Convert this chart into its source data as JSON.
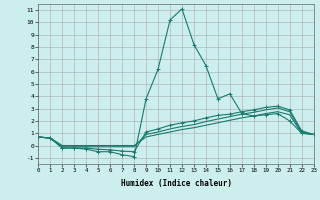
{
  "xlabel": "Humidex (Indice chaleur)",
  "bg_color": "#cceeed",
  "grid_color": "#aaaaaa",
  "line_color": "#1a7a6e",
  "xlim": [
    0,
    23
  ],
  "ylim": [
    -1.5,
    11.5
  ],
  "xticks": [
    0,
    1,
    2,
    3,
    4,
    5,
    6,
    7,
    8,
    9,
    10,
    11,
    12,
    13,
    14,
    15,
    16,
    17,
    18,
    19,
    20,
    21,
    22,
    23
  ],
  "yticks": [
    -1,
    0,
    1,
    2,
    3,
    4,
    5,
    6,
    7,
    8,
    9,
    10,
    11
  ],
  "series_with_markers": [
    [
      0.7,
      0.6,
      -0.2,
      -0.2,
      -0.3,
      -0.5,
      -0.5,
      -0.75,
      -0.9,
      3.8,
      6.2,
      10.2,
      11.1,
      8.2,
      6.5,
      3.8,
      4.2,
      2.6,
      2.4,
      2.5,
      2.6,
      2.0,
      1.0,
      0.9
    ],
    [
      0.7,
      0.6,
      -0.2,
      -0.2,
      -0.2,
      -0.3,
      -0.35,
      -0.45,
      -0.5,
      1.1,
      1.35,
      1.65,
      1.85,
      2.0,
      2.25,
      2.45,
      2.55,
      2.75,
      2.9,
      3.1,
      3.2,
      2.9,
      1.2,
      0.9
    ]
  ],
  "series_no_markers": [
    [
      0.7,
      0.6,
      -0.1,
      -0.1,
      -0.1,
      -0.1,
      -0.1,
      -0.1,
      -0.1,
      0.9,
      1.1,
      1.35,
      1.55,
      1.7,
      1.95,
      2.15,
      2.35,
      2.55,
      2.7,
      2.9,
      3.05,
      2.75,
      1.1,
      0.9
    ],
    [
      0.7,
      0.6,
      0.0,
      0.0,
      0.0,
      0.0,
      0.0,
      0.0,
      0.0,
      0.7,
      0.9,
      1.1,
      1.3,
      1.45,
      1.65,
      1.85,
      2.05,
      2.25,
      2.4,
      2.6,
      2.75,
      2.5,
      1.0,
      0.9
    ]
  ],
  "markersize": 3.5,
  "linewidth": 0.8
}
